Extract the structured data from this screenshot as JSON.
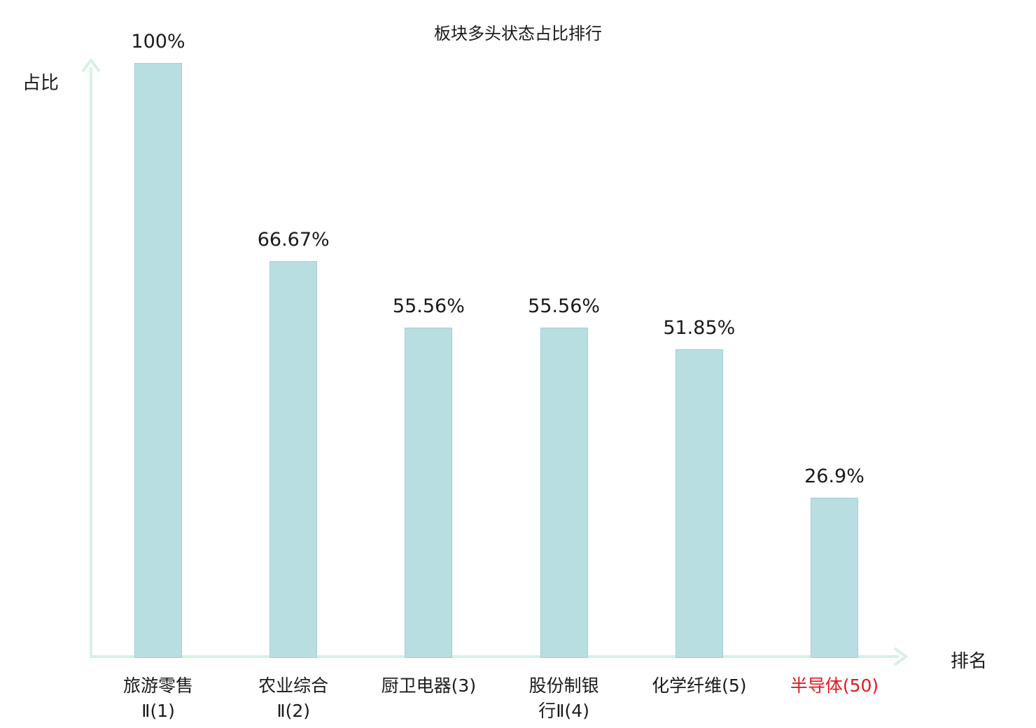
{
  "title": "板块多头状态占比排行",
  "axes": {
    "y_label": "占比",
    "x_label": "排名"
  },
  "colors": {
    "bar": "#b9dee2",
    "bar_border": "#a3ced5",
    "axis": "#d9efe4",
    "text": "#1a1a1a",
    "highlight": "#e3191e"
  },
  "chart_data": {
    "type": "bar",
    "title": "板块多头状态占比排行",
    "xlabel": "排名",
    "ylabel": "占比",
    "ylim": [
      0,
      100
    ],
    "categories": [
      "旅游零售Ⅱ(1)",
      "农业综合Ⅱ(2)",
      "厨卫电器(3)",
      "股份制银行Ⅱ(4)",
      "化学纤维(5)",
      "半导体(50)"
    ],
    "category_lines": [
      [
        "旅游零售",
        "Ⅱ(1)"
      ],
      [
        "农业综合",
        "Ⅱ(2)"
      ],
      [
        "厨卫电器(3)"
      ],
      [
        "股份制银",
        "行Ⅱ(4)"
      ],
      [
        "化学纤维(5)"
      ],
      [
        "半导体(50)"
      ]
    ],
    "values": [
      100,
      66.67,
      55.56,
      55.56,
      51.85,
      26.9
    ],
    "value_labels": [
      "100%",
      "66.67%",
      "55.56%",
      "55.56%",
      "51.85%",
      "26.9%"
    ],
    "highlight_index": 5,
    "grid": false,
    "legend": "none"
  }
}
